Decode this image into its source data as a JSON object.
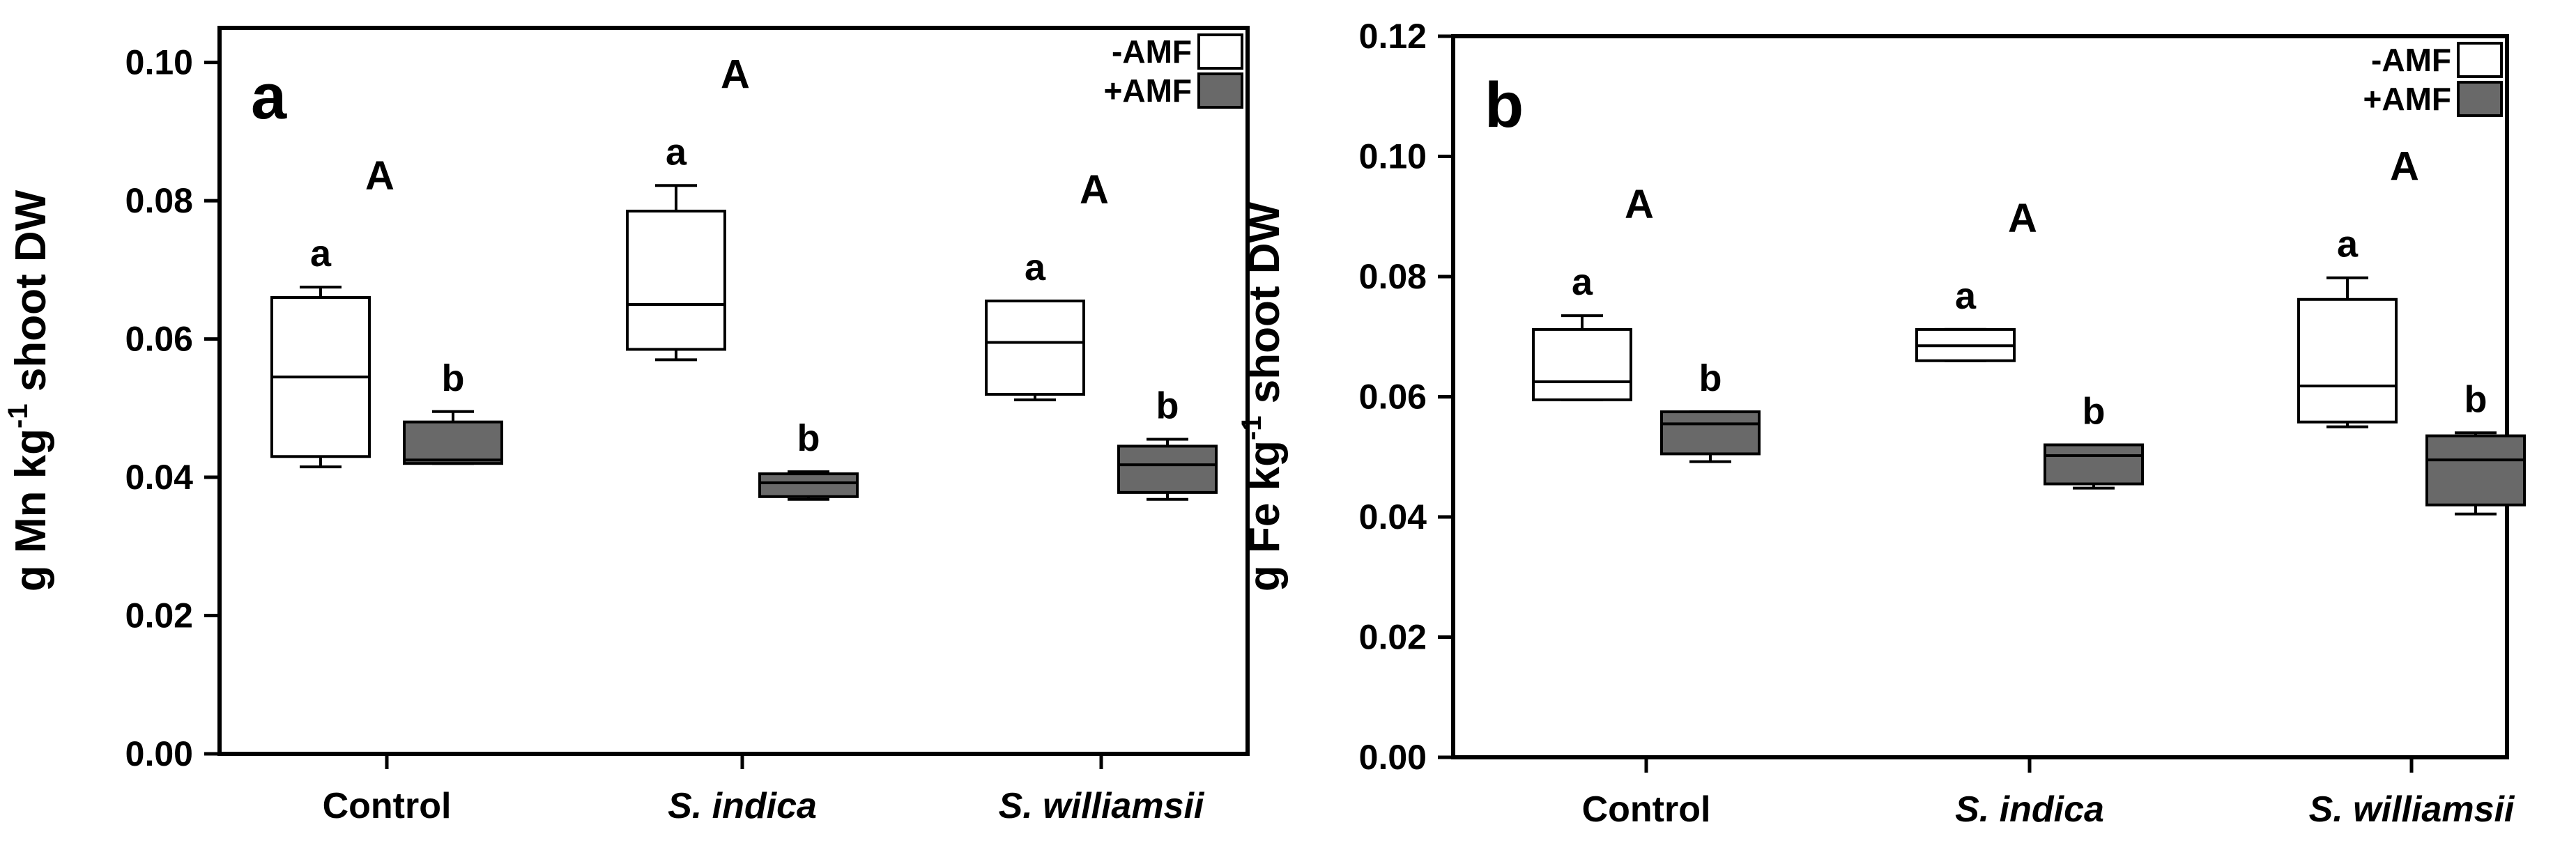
{
  "chart_data": [
    {
      "type": "box",
      "panel_label": "a",
      "title": "",
      "ylabel": "g Mn kg-1 shoot DW",
      "ylabel_parts": {
        "pre": "g Mn kg",
        "sup": "-1",
        "post": " shoot DW"
      },
      "ylim": [
        0,
        0.105
      ],
      "yticks": [
        0.0,
        0.02,
        0.04,
        0.06,
        0.08,
        0.1
      ],
      "ytick_labels": [
        "0.00",
        "0.02",
        "0.04",
        "0.06",
        "0.08",
        "0.10"
      ],
      "categories": [
        "Control",
        "S. indica",
        "S. williamsii"
      ],
      "category_italic": [
        false,
        true,
        true
      ],
      "legend": {
        "position": "top-right",
        "entries": [
          "-AMF",
          "+AMF"
        ]
      },
      "group_letters": [
        "A",
        "A",
        "A"
      ],
      "series": [
        {
          "name": "-AMF",
          "color": "#ffffff",
          "boxes": [
            {
              "whisker_low": 0.0415,
              "q1": 0.043,
              "median": 0.0545,
              "q3": 0.066,
              "whisker_high": 0.0675,
              "letter": "a"
            },
            {
              "whisker_low": 0.057,
              "q1": 0.0585,
              "median": 0.065,
              "q3": 0.0785,
              "whisker_high": 0.0822,
              "letter": "a"
            },
            {
              "whisker_low": 0.0512,
              "q1": 0.052,
              "median": 0.0595,
              "q3": 0.0655,
              "whisker_high": 0.0655,
              "letter": "a"
            }
          ]
        },
        {
          "name": "+AMF",
          "color": "#696969",
          "boxes": [
            {
              "whisker_low": 0.042,
              "q1": 0.042,
              "median": 0.0425,
              "q3": 0.048,
              "whisker_high": 0.0495,
              "letter": "b"
            },
            {
              "whisker_low": 0.0368,
              "q1": 0.0372,
              "median": 0.0392,
              "q3": 0.0405,
              "whisker_high": 0.0408,
              "letter": "b"
            },
            {
              "whisker_low": 0.0368,
              "q1": 0.0378,
              "median": 0.0418,
              "q3": 0.0445,
              "whisker_high": 0.0455,
              "letter": "b"
            }
          ]
        }
      ]
    },
    {
      "type": "box",
      "panel_label": "b",
      "title": "",
      "ylabel": "g Fe kg-1 shoot DW",
      "ylabel_parts": {
        "pre": "g Fe kg",
        "sup": "-1",
        "post": " shoot DW"
      },
      "ylim": [
        0,
        0.12
      ],
      "yticks": [
        0.0,
        0.02,
        0.04,
        0.06,
        0.08,
        0.1,
        0.12
      ],
      "ytick_labels": [
        "0.00",
        "0.02",
        "0.04",
        "0.06",
        "0.08",
        "0.10",
        "0.12"
      ],
      "categories": [
        "Control",
        "S. indica",
        "S. williamsii"
      ],
      "category_italic": [
        false,
        true,
        true
      ],
      "legend": {
        "position": "top-right",
        "entries": [
          "-AMF",
          "+AMF"
        ]
      },
      "group_letters": [
        "A",
        "A",
        "A"
      ],
      "series": [
        {
          "name": "-AMF",
          "color": "#ffffff",
          "boxes": [
            {
              "whisker_low": 0.0595,
              "q1": 0.0595,
              "median": 0.0625,
              "q3": 0.0712,
              "whisker_high": 0.0735,
              "letter": "a"
            },
            {
              "whisker_low": 0.066,
              "q1": 0.066,
              "median": 0.0685,
              "q3": 0.0712,
              "whisker_high": 0.0712,
              "letter": "a"
            },
            {
              "whisker_low": 0.055,
              "q1": 0.0558,
              "median": 0.0618,
              "q3": 0.0762,
              "whisker_high": 0.0798,
              "letter": "a"
            }
          ]
        },
        {
          "name": "+AMF",
          "color": "#696969",
          "boxes": [
            {
              "whisker_low": 0.0492,
              "q1": 0.0505,
              "median": 0.0555,
              "q3": 0.0575,
              "whisker_high": 0.0575,
              "letter": "b"
            },
            {
              "whisker_low": 0.0448,
              "q1": 0.0455,
              "median": 0.0502,
              "q3": 0.052,
              "whisker_high": 0.052,
              "letter": "b"
            },
            {
              "whisker_low": 0.0405,
              "q1": 0.042,
              "median": 0.0495,
              "q3": 0.0535,
              "whisker_high": 0.054,
              "letter": "b"
            }
          ]
        }
      ]
    }
  ]
}
